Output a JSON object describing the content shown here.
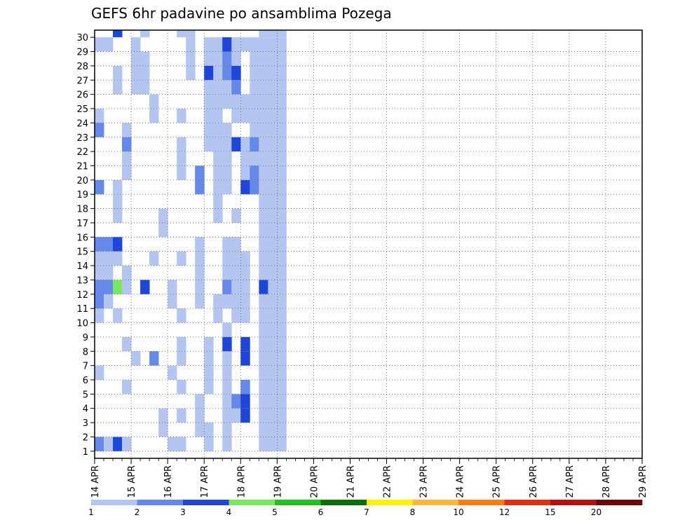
{
  "chart_data": {
    "type": "heatmap",
    "title": "GEFS 6hr padavine po ansamblima Pozega",
    "xlabel": "",
    "ylabel": "",
    "x_tick_labels": [
      "14 APR",
      "15 APR",
      "16 APR",
      "17 APR",
      "18 APR",
      "19 APR",
      "20 APR",
      "21 APR",
      "22 APR",
      "23 APR",
      "24 APR",
      "25 APR",
      "26 APR",
      "27 APR",
      "28 APR",
      "29 APR"
    ],
    "y_tick_labels": [
      "1",
      "2",
      "3",
      "4",
      "5",
      "6",
      "7",
      "8",
      "9",
      "10",
      "11",
      "12",
      "13",
      "14",
      "15",
      "16",
      "17",
      "18",
      "19",
      "20",
      "21",
      "22",
      "23",
      "24",
      "25",
      "26",
      "27",
      "28",
      "29",
      "30"
    ],
    "x_range": [
      "14 APR",
      "29 APR"
    ],
    "y_range": [
      0,
      30
    ],
    "steps_per_day": 4,
    "grid": true,
    "colorbar": {
      "position": "bottom",
      "boundaries": [
        1,
        2,
        3,
        4,
        5,
        6,
        7,
        8,
        10,
        12,
        15,
        20
      ],
      "labels": [
        "1",
        "2",
        "3",
        "4",
        "5",
        "6",
        "7",
        "8",
        "10",
        "12",
        "15",
        "20"
      ],
      "colors": [
        "#b4c6f0",
        "#6489e8",
        "#1e46d8",
        "#78e860",
        "#1fc21f",
        "#0a6e0a",
        "#fff200",
        "#ffb63c",
        "#ff7a14",
        "#e0300f",
        "#b81010",
        "#6e0808"
      ]
    },
    "cells": [
      [
        0,
        1,
        2
      ],
      [
        0,
        29,
        1
      ],
      [
        0,
        24,
        1
      ],
      [
        0,
        23,
        2
      ],
      [
        0,
        19,
        2
      ],
      [
        0,
        15,
        2
      ],
      [
        0,
        14,
        1
      ],
      [
        0,
        13,
        1
      ],
      [
        0,
        12,
        2
      ],
      [
        0,
        11,
        2
      ],
      [
        0,
        10,
        1
      ],
      [
        0,
        6,
        1
      ],
      [
        1,
        1,
        1
      ],
      [
        1,
        29,
        1
      ],
      [
        1,
        15,
        2
      ],
      [
        1,
        14,
        1
      ],
      [
        1,
        13,
        1
      ],
      [
        1,
        12,
        2
      ],
      [
        1,
        11,
        1
      ],
      [
        2,
        30,
        3
      ],
      [
        2,
        1,
        3
      ],
      [
        2,
        15,
        3
      ],
      [
        2,
        14,
        1
      ],
      [
        2,
        10,
        1
      ],
      [
        2,
        12,
        4
      ],
      [
        2,
        19,
        1
      ],
      [
        2,
        26,
        1
      ],
      [
        2,
        27,
        1
      ],
      [
        2,
        18,
        1
      ],
      [
        2,
        17,
        1
      ],
      [
        3,
        1,
        1
      ],
      [
        3,
        5,
        1
      ],
      [
        3,
        8,
        1
      ],
      [
        3,
        12,
        1
      ],
      [
        3,
        13,
        1
      ],
      [
        3,
        20,
        1
      ],
      [
        3,
        21,
        1
      ],
      [
        3,
        22,
        2
      ],
      [
        3,
        23,
        1
      ],
      [
        4,
        7,
        1
      ],
      [
        4,
        26,
        1
      ],
      [
        4,
        27,
        1
      ],
      [
        4,
        29,
        1
      ],
      [
        4,
        28,
        1
      ],
      [
        5,
        12,
        3
      ],
      [
        5,
        26,
        1
      ],
      [
        5,
        27,
        1
      ],
      [
        5,
        28,
        1
      ],
      [
        5,
        30,
        1
      ],
      [
        6,
        7,
        2
      ],
      [
        6,
        14,
        1
      ],
      [
        6,
        24,
        1
      ],
      [
        6,
        25,
        1
      ],
      [
        7,
        2,
        1
      ],
      [
        7,
        3,
        1
      ],
      [
        7,
        17,
        1
      ],
      [
        7,
        16,
        1
      ],
      [
        8,
        1,
        1
      ],
      [
        8,
        6,
        1
      ],
      [
        8,
        11,
        1
      ],
      [
        8,
        12,
        1
      ],
      [
        9,
        5,
        1
      ],
      [
        9,
        10,
        1
      ],
      [
        9,
        8,
        1
      ],
      [
        9,
        7,
        1
      ],
      [
        9,
        14,
        1
      ],
      [
        9,
        3,
        1
      ],
      [
        9,
        20,
        1
      ],
      [
        9,
        21,
        1
      ],
      [
        9,
        22,
        1
      ],
      [
        9,
        24,
        1
      ],
      [
        9,
        30,
        1
      ],
      [
        9,
        1,
        1
      ],
      [
        10,
        30,
        1
      ],
      [
        10,
        29,
        1
      ],
      [
        10,
        28,
        1
      ],
      [
        10,
        27,
        1
      ],
      [
        11,
        13,
        1
      ],
      [
        11,
        12,
        1
      ],
      [
        11,
        11,
        1
      ],
      [
        11,
        14,
        1
      ],
      [
        11,
        15,
        1
      ],
      [
        11,
        4,
        1
      ],
      [
        11,
        3,
        1
      ],
      [
        11,
        2,
        1
      ],
      [
        11,
        19,
        2
      ],
      [
        11,
        20,
        2
      ],
      [
        12,
        29,
        1
      ],
      [
        12,
        28,
        1
      ],
      [
        12,
        27,
        3
      ],
      [
        12,
        26,
        1
      ],
      [
        12,
        25,
        1
      ],
      [
        12,
        24,
        1
      ],
      [
        12,
        23,
        1
      ],
      [
        12,
        22,
        1
      ],
      [
        12,
        1,
        1
      ],
      [
        12,
        2,
        1
      ],
      [
        12,
        5,
        1
      ],
      [
        12,
        6,
        1
      ],
      [
        12,
        7,
        1
      ],
      [
        12,
        8,
        1
      ],
      [
        13,
        29,
        1
      ],
      [
        13,
        28,
        1
      ],
      [
        13,
        27,
        1
      ],
      [
        13,
        26,
        1
      ],
      [
        13,
        25,
        1
      ],
      [
        13,
        24,
        1
      ],
      [
        13,
        23,
        1
      ],
      [
        13,
        22,
        1
      ],
      [
        13,
        21,
        1
      ],
      [
        13,
        17,
        1
      ],
      [
        13,
        10,
        1
      ],
      [
        13,
        11,
        1
      ],
      [
        13,
        18,
        1
      ],
      [
        13,
        19,
        1
      ],
      [
        13,
        20,
        1
      ],
      [
        14,
        7,
        1
      ],
      [
        14,
        6,
        1
      ],
      [
        14,
        5,
        1
      ],
      [
        14,
        1,
        1
      ],
      [
        14,
        8,
        3
      ],
      [
        14,
        9,
        1
      ],
      [
        14,
        4,
        1
      ],
      [
        14,
        3,
        1
      ],
      [
        14,
        2,
        1
      ],
      [
        14,
        29,
        3
      ],
      [
        14,
        28,
        2
      ],
      [
        14,
        27,
        2
      ],
      [
        14,
        26,
        1
      ],
      [
        14,
        25,
        1
      ],
      [
        14,
        23,
        1
      ],
      [
        14,
        22,
        1
      ],
      [
        14,
        21,
        1
      ],
      [
        14,
        20,
        1
      ],
      [
        14,
        19,
        1
      ],
      [
        14,
        15,
        1
      ],
      [
        14,
        14,
        1
      ],
      [
        14,
        13,
        1
      ],
      [
        14,
        12,
        2
      ],
      [
        14,
        11,
        1
      ],
      [
        15,
        29,
        1
      ],
      [
        15,
        27,
        3
      ],
      [
        15,
        26,
        2
      ],
      [
        15,
        25,
        1
      ],
      [
        15,
        24,
        1
      ],
      [
        15,
        22,
        3
      ],
      [
        15,
        17,
        1
      ],
      [
        15,
        10,
        1
      ],
      [
        15,
        4,
        2
      ],
      [
        15,
        3,
        1
      ],
      [
        15,
        15,
        1
      ],
      [
        15,
        14,
        1
      ],
      [
        15,
        13,
        1
      ],
      [
        15,
        12,
        1
      ],
      [
        15,
        11,
        1
      ],
      [
        15,
        28,
        1
      ],
      [
        16,
        5,
        2
      ],
      [
        16,
        4,
        3
      ],
      [
        16,
        3,
        3
      ],
      [
        16,
        7,
        3
      ],
      [
        16,
        8,
        3
      ],
      [
        16,
        10,
        1
      ],
      [
        16,
        11,
        1
      ],
      [
        16,
        12,
        1
      ],
      [
        16,
        13,
        1
      ],
      [
        16,
        14,
        1
      ],
      [
        16,
        19,
        3
      ],
      [
        16,
        20,
        1
      ],
      [
        16,
        21,
        1
      ],
      [
        16,
        22,
        1
      ],
      [
        16,
        24,
        1
      ],
      [
        16,
        25,
        1
      ],
      [
        16,
        29,
        1
      ],
      [
        17,
        19,
        2
      ],
      [
        17,
        20,
        2
      ],
      [
        17,
        21,
        1
      ],
      [
        17,
        22,
        2
      ],
      [
        17,
        23,
        1
      ],
      [
        17,
        24,
        1
      ],
      [
        17,
        25,
        1
      ],
      [
        17,
        26,
        1
      ],
      [
        17,
        27,
        1
      ],
      [
        17,
        28,
        1
      ],
      [
        17,
        29,
        1
      ],
      [
        18,
        26,
        1
      ],
      [
        18,
        12,
        3
      ],
      [
        18,
        13,
        1
      ],
      [
        18,
        14,
        1
      ],
      [
        18,
        15,
        1
      ],
      [
        18,
        1,
        1
      ],
      [
        18,
        2,
        1
      ],
      [
        18,
        3,
        1
      ],
      [
        18,
        4,
        1
      ],
      [
        18,
        5,
        1
      ],
      [
        18,
        6,
        1
      ],
      [
        18,
        7,
        1
      ],
      [
        18,
        8,
        1
      ],
      [
        18,
        9,
        1
      ],
      [
        18,
        10,
        1
      ],
      [
        18,
        11,
        1
      ],
      [
        18,
        16,
        1
      ],
      [
        18,
        17,
        1
      ],
      [
        18,
        18,
        1
      ],
      [
        18,
        19,
        1
      ],
      [
        18,
        20,
        1
      ],
      [
        18,
        21,
        1
      ],
      [
        18,
        22,
        1
      ],
      [
        18,
        23,
        1
      ],
      [
        18,
        24,
        1
      ],
      [
        18,
        25,
        1
      ],
      [
        18,
        27,
        1
      ],
      [
        18,
        28,
        1
      ],
      [
        18,
        29,
        1
      ],
      [
        18,
        30,
        1
      ],
      [
        19,
        30,
        1
      ],
      [
        19,
        29,
        1
      ],
      [
        19,
        28,
        1
      ],
      [
        19,
        27,
        1
      ],
      [
        19,
        26,
        1
      ],
      [
        19,
        25,
        1
      ],
      [
        19,
        24,
        1
      ],
      [
        19,
        23,
        1
      ],
      [
        19,
        22,
        1
      ],
      [
        19,
        21,
        1
      ],
      [
        19,
        20,
        1
      ],
      [
        19,
        19,
        1
      ],
      [
        19,
        18,
        1
      ],
      [
        19,
        17,
        1
      ],
      [
        19,
        16,
        1
      ],
      [
        19,
        15,
        1
      ],
      [
        19,
        14,
        1
      ],
      [
        19,
        13,
        1
      ],
      [
        19,
        12,
        1
      ],
      [
        19,
        11,
        1
      ],
      [
        19,
        10,
        1
      ],
      [
        19,
        9,
        1
      ],
      [
        19,
        8,
        1
      ],
      [
        19,
        7,
        1
      ],
      [
        19,
        6,
        1
      ],
      [
        19,
        5,
        1
      ],
      [
        19,
        4,
        1
      ],
      [
        19,
        3,
        1
      ],
      [
        19,
        2,
        1
      ],
      [
        19,
        1,
        1
      ],
      [
        20,
        30,
        1
      ],
      [
        20,
        29,
        1
      ],
      [
        20,
        28,
        1
      ],
      [
        20,
        27,
        1
      ],
      [
        20,
        26,
        1
      ],
      [
        20,
        25,
        1
      ],
      [
        20,
        24,
        1
      ],
      [
        20,
        23,
        1
      ],
      [
        20,
        22,
        1
      ],
      [
        20,
        21,
        1
      ],
      [
        20,
        20,
        1
      ],
      [
        20,
        19,
        1
      ],
      [
        20,
        18,
        1
      ],
      [
        20,
        17,
        1
      ],
      [
        20,
        16,
        1
      ],
      [
        20,
        15,
        1
      ],
      [
        20,
        14,
        1
      ],
      [
        20,
        13,
        1
      ],
      [
        20,
        12,
        1
      ],
      [
        20,
        11,
        1
      ],
      [
        20,
        10,
        1
      ],
      [
        20,
        9,
        1
      ],
      [
        20,
        8,
        1
      ],
      [
        20,
        7,
        1
      ],
      [
        20,
        6,
        1
      ],
      [
        20,
        5,
        1
      ],
      [
        20,
        4,
        1
      ],
      [
        20,
        3,
        1
      ],
      [
        20,
        2,
        1
      ],
      [
        20,
        1,
        1
      ]
    ],
    "cells_note": "",
    "value_units": ""
  }
}
